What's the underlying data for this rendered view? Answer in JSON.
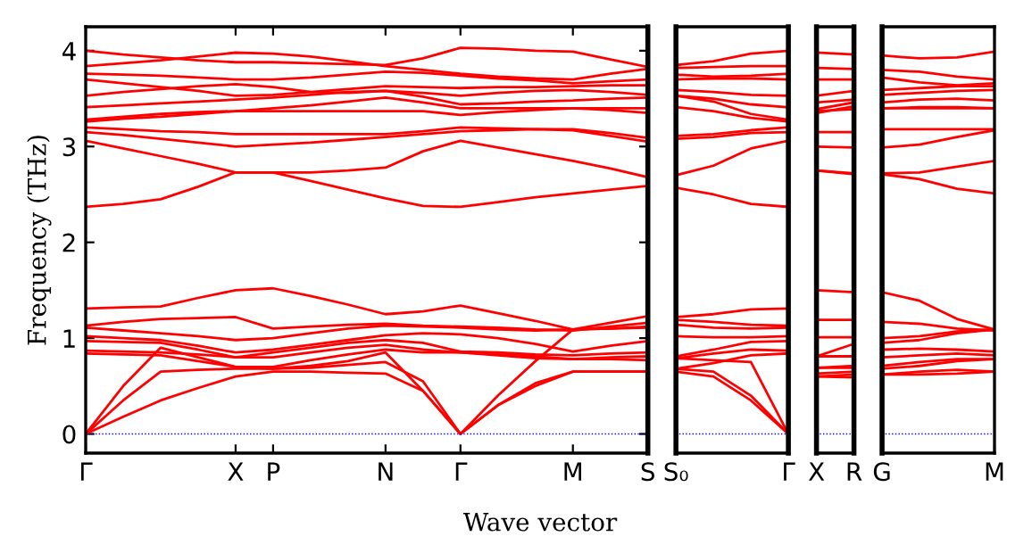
{
  "chart_data": [
    {
      "type": "line",
      "ylabel": "Frequency (THz)",
      "xlabel": "Wave vector",
      "color": "#ff0000",
      "ylim": [
        -0.2,
        4.25
      ],
      "yticks": [
        0,
        1,
        2,
        3,
        4
      ],
      "categories": [
        "Γ",
        null,
        null,
        null,
        "X",
        "P",
        null,
        null,
        "N",
        null,
        "Γ",
        null,
        null,
        "M",
        null,
        "S"
      ],
      "ref_lines": [
        {
          "axis": "y",
          "value": 0,
          "color": "#0000ff",
          "line_style": "dotted"
        }
      ],
      "series": [
        {
          "values": [
            4.0,
            3.96,
            3.93,
            3.9,
            3.88,
            3.88,
            3.87,
            3.86,
            3.85,
            3.92,
            4.03,
            4.02,
            4.0,
            3.99,
            3.91,
            3.83
          ]
        },
        {
          "values": [
            3.84,
            3.87,
            3.9,
            3.94,
            3.98,
            3.97,
            3.94,
            3.89,
            3.84,
            3.8,
            3.76,
            3.73,
            3.71,
            3.7,
            3.76,
            3.81
          ]
        },
        {
          "values": [
            3.76,
            3.75,
            3.74,
            3.72,
            3.7,
            3.7,
            3.72,
            3.75,
            3.78,
            3.77,
            3.74,
            3.71,
            3.69,
            3.66,
            3.68,
            3.7
          ]
        },
        {
          "values": [
            3.7,
            3.66,
            3.62,
            3.58,
            3.53,
            3.54,
            3.57,
            3.6,
            3.63,
            3.62,
            3.61,
            3.62,
            3.62,
            3.63,
            3.64,
            3.64
          ]
        },
        {
          "values": [
            3.53,
            3.57,
            3.6,
            3.63,
            3.65,
            3.62,
            3.57,
            3.56,
            3.58,
            3.56,
            3.53,
            3.56,
            3.58,
            3.59,
            3.57,
            3.54
          ]
        },
        {
          "values": [
            3.41,
            3.43,
            3.45,
            3.47,
            3.49,
            3.51,
            3.54,
            3.57,
            3.58,
            3.52,
            3.44,
            3.45,
            3.47,
            3.48,
            3.5,
            3.51
          ]
        },
        {
          "values": [
            3.28,
            3.31,
            3.34,
            3.36,
            3.37,
            3.4,
            3.43,
            3.47,
            3.51,
            3.46,
            3.4,
            3.4,
            3.4,
            3.4,
            3.38,
            3.35
          ]
        },
        {
          "values": [
            3.26,
            3.29,
            3.31,
            3.34,
            3.37,
            3.37,
            3.37,
            3.37,
            3.37,
            3.37,
            3.33,
            3.36,
            3.38,
            3.4,
            3.4,
            3.4
          ]
        },
        {
          "values": [
            3.2,
            3.18,
            3.16,
            3.15,
            3.13,
            3.13,
            3.13,
            3.13,
            3.13,
            3.16,
            3.2,
            3.19,
            3.18,
            3.18,
            3.14,
            3.09
          ]
        },
        {
          "values": [
            3.15,
            3.12,
            3.08,
            3.04,
            3.0,
            3.02,
            3.04,
            3.07,
            3.1,
            3.13,
            3.16,
            3.17,
            3.18,
            3.17,
            3.11,
            3.05
          ]
        },
        {
          "values": [
            3.06,
            2.98,
            2.9,
            2.82,
            2.73,
            2.73,
            2.73,
            2.75,
            2.78,
            2.95,
            3.06,
            2.99,
            2.92,
            2.85,
            2.77,
            2.68
          ]
        },
        {
          "values": [
            2.37,
            2.4,
            2.45,
            2.58,
            2.73,
            2.73,
            2.64,
            2.55,
            2.46,
            2.38,
            2.37,
            2.42,
            2.47,
            2.51,
            2.55,
            2.59
          ]
        },
        {
          "values": [
            1.31,
            1.32,
            1.33,
            1.42,
            1.5,
            1.52,
            1.44,
            1.35,
            1.25,
            1.28,
            1.34,
            1.26,
            1.18,
            1.09,
            1.16,
            1.23
          ]
        },
        {
          "values": [
            1.13,
            1.17,
            1.2,
            1.21,
            1.22,
            1.1,
            1.12,
            1.14,
            1.15,
            1.13,
            1.12,
            1.11,
            1.09,
            1.08,
            1.12,
            1.16
          ]
        },
        {
          "values": [
            1.11,
            1.08,
            1.05,
            1.02,
            0.98,
            1.0,
            1.05,
            1.1,
            1.13,
            1.12,
            1.11,
            1.09,
            1.08,
            1.09,
            1.1,
            1.11
          ]
        },
        {
          "values": [
            1.02,
            1.0,
            0.98,
            0.92,
            0.85,
            0.88,
            0.93,
            0.98,
            1.03,
            1.05,
            1.04,
            1.0,
            0.94,
            0.86,
            0.92,
            0.97
          ]
        },
        {
          "values": [
            0.97,
            0.96,
            0.95,
            0.88,
            0.8,
            0.85,
            0.9,
            0.95,
            0.98,
            0.95,
            0.86,
            0.85,
            0.83,
            0.82,
            0.84,
            0.85
          ]
        },
        {
          "values": [
            0.87,
            0.86,
            0.85,
            0.83,
            0.8,
            0.8,
            0.85,
            0.9,
            0.93,
            0.88,
            0.85,
            0.82,
            0.79,
            0.78,
            0.8,
            0.81
          ]
        },
        {
          "values": [
            0.84,
            0.83,
            0.82,
            0.76,
            0.7,
            0.7,
            0.77,
            0.83,
            0.88,
            0.85,
            0.85,
            0.83,
            0.81,
            0.78,
            0.78,
            0.77
          ]
        },
        {
          "values": [
            0,
            0.5,
            0.9,
            0.8,
            0.7,
            0.68,
            0.71,
            0.76,
            0.85,
            0.45,
            0,
            0.4,
            0.76,
            1.09,
            1.1,
            1.12
          ]
        },
        {
          "values": [
            0,
            0.35,
            0.65,
            0.67,
            0.68,
            0.68,
            0.69,
            0.72,
            0.75,
            0.55,
            0,
            0.3,
            0.53,
            0.65,
            0.65,
            0.65
          ]
        },
        {
          "values": [
            0,
            0.18,
            0.35,
            0.48,
            0.6,
            0.65,
            0.65,
            0.64,
            0.63,
            0.45,
            0,
            0.3,
            0.5,
            0.65,
            0.65,
            0.65
          ]
        }
      ]
    },
    {
      "type": "line",
      "color": "#ff0000",
      "ylim": [
        -0.2,
        4.25
      ],
      "tick_labels": "x",
      "categories": [
        "S₀",
        null,
        null,
        "Γ"
      ],
      "ref_lines": [
        {
          "axis": "y",
          "value": 0,
          "color": "#0000ff",
          "line_style": "dotted"
        }
      ],
      "series": [
        {
          "values": [
            3.85,
            3.89,
            3.97,
            4.0
          ]
        },
        {
          "values": [
            3.82,
            3.83,
            3.84,
            3.84
          ]
        },
        {
          "values": [
            3.75,
            3.73,
            3.74,
            3.76
          ]
        },
        {
          "values": [
            3.7,
            3.71,
            3.71,
            3.7
          ]
        },
        {
          "values": [
            3.59,
            3.57,
            3.54,
            3.53
          ]
        },
        {
          "values": [
            3.53,
            3.5,
            3.44,
            3.41
          ]
        },
        {
          "values": [
            3.53,
            3.47,
            3.34,
            3.28
          ]
        },
        {
          "values": [
            3.41,
            3.37,
            3.3,
            3.26
          ]
        },
        {
          "values": [
            3.11,
            3.13,
            3.17,
            3.2
          ]
        },
        {
          "values": [
            3.08,
            3.1,
            3.14,
            3.15
          ]
        },
        {
          "values": [
            2.7,
            2.8,
            2.98,
            3.06
          ]
        },
        {
          "values": [
            2.57,
            2.5,
            2.4,
            2.37
          ]
        },
        {
          "values": [
            1.22,
            1.25,
            1.3,
            1.31
          ]
        },
        {
          "values": [
            1.19,
            1.17,
            1.14,
            1.13
          ]
        },
        {
          "values": [
            1.14,
            1.11,
            1.1,
            1.11
          ]
        },
        {
          "values": [
            1.02,
            1.01,
            1.01,
            1.02
          ]
        },
        {
          "values": [
            0.81,
            0.88,
            0.96,
            0.97
          ]
        },
        {
          "values": [
            0.79,
            0.84,
            0.88,
            0.87
          ]
        },
        {
          "values": [
            0.68,
            0.74,
            0.82,
            0.84
          ]
        },
        {
          "values": [
            0.79,
            0.77,
            0.75,
            0
          ]
        },
        {
          "values": [
            0.68,
            0.65,
            0.4,
            0
          ]
        },
        {
          "values": [
            0.65,
            0.6,
            0.35,
            0
          ]
        }
      ]
    },
    {
      "type": "line",
      "color": "#ff0000",
      "ylim": [
        -0.2,
        4.25
      ],
      "tick_labels": "x",
      "categories": [
        "X",
        "R"
      ],
      "ref_lines": [
        {
          "axis": "y",
          "value": 0,
          "color": "#0000ff",
          "line_style": "dotted"
        }
      ],
      "series": [
        {
          "values": [
            3.98,
            3.96
          ]
        },
        {
          "values": [
            3.82,
            3.81
          ]
        },
        {
          "values": [
            3.7,
            3.7
          ]
        },
        {
          "values": [
            3.53,
            3.58
          ]
        },
        {
          "values": [
            3.46,
            3.49
          ]
        },
        {
          "values": [
            3.39,
            3.46
          ]
        },
        {
          "values": [
            3.35,
            3.42
          ]
        },
        {
          "values": [
            3.37,
            3.39
          ]
        },
        {
          "values": [
            3.15,
            3.15
          ]
        },
        {
          "values": [
            3.0,
            2.99
          ]
        },
        {
          "values": [
            2.75,
            2.72
          ]
        },
        {
          "values": [
            2.75,
            2.71
          ]
        },
        {
          "values": [
            1.5,
            1.48
          ]
        },
        {
          "values": [
            1.19,
            1.19
          ]
        },
        {
          "values": [
            1.01,
            1.01
          ]
        },
        {
          "values": [
            0.81,
            0.94
          ]
        },
        {
          "values": [
            0.81,
            0.81
          ]
        },
        {
          "values": [
            0.69,
            0.71
          ]
        },
        {
          "values": [
            0.69,
            0.69
          ]
        },
        {
          "values": [
            0.63,
            0.65
          ]
        },
        {
          "values": [
            0.6,
            0.59
          ]
        },
        {
          "values": [
            0.6,
            0.62
          ]
        }
      ]
    },
    {
      "type": "line",
      "color": "#ff0000",
      "ylim": [
        -0.2,
        4.25
      ],
      "tick_labels": "x",
      "categories": [
        "G",
        null,
        null,
        "M"
      ],
      "ref_lines": [
        {
          "axis": "y",
          "value": 0,
          "color": "#0000ff",
          "line_style": "dotted"
        }
      ],
      "series": [
        {
          "values": [
            3.95,
            3.92,
            3.93,
            3.99
          ]
        },
        {
          "values": [
            3.8,
            3.78,
            3.73,
            3.7
          ]
        },
        {
          "values": [
            3.72,
            3.67,
            3.64,
            3.66
          ]
        },
        {
          "values": [
            3.59,
            3.61,
            3.63,
            3.63
          ]
        },
        {
          "values": [
            3.54,
            3.56,
            3.58,
            3.59
          ]
        },
        {
          "values": [
            3.46,
            3.49,
            3.5,
            3.48
          ]
        },
        {
          "values": [
            3.4,
            3.41,
            3.41,
            3.4
          ]
        },
        {
          "values": [
            3.4,
            3.4,
            3.4,
            3.4
          ]
        },
        {
          "values": [
            3.18,
            3.18,
            3.18,
            3.18
          ]
        },
        {
          "values": [
            2.99,
            3.02,
            3.1,
            3.17
          ]
        },
        {
          "values": [
            2.72,
            2.73,
            2.79,
            2.85
          ]
        },
        {
          "values": [
            2.71,
            2.66,
            2.56,
            2.51
          ]
        },
        {
          "values": [
            1.48,
            1.39,
            1.2,
            1.09
          ]
        },
        {
          "values": [
            1.17,
            1.15,
            1.1,
            1.08
          ]
        },
        {
          "values": [
            1.0,
            1.02,
            1.07,
            1.09
          ]
        },
        {
          "values": [
            0.88,
            0.89,
            0.88,
            0.86
          ]
        },
        {
          "values": [
            0.8,
            0.82,
            0.84,
            0.82
          ]
        },
        {
          "values": [
            0.71,
            0.75,
            0.78,
            0.78
          ]
        },
        {
          "values": [
            0.68,
            0.71,
            0.76,
            0.78
          ]
        },
        {
          "values": [
            0.95,
            0.98,
            1.05,
            1.09
          ]
        },
        {
          "values": [
            0.62,
            0.65,
            0.67,
            0.65
          ]
        },
        {
          "values": [
            0.62,
            0.62,
            0.63,
            0.65
          ]
        }
      ]
    }
  ]
}
